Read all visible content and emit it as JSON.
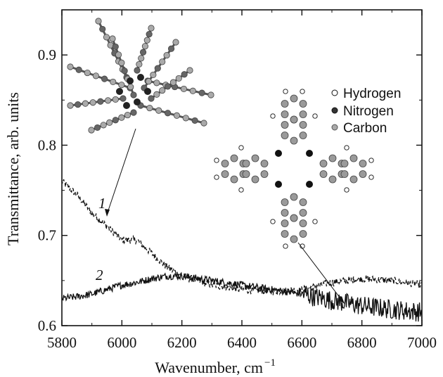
{
  "chart_data": {
    "type": "line",
    "xlabel": "Wavenumber, cm",
    "xlabel_sup": "−1",
    "ylabel": "Transmittance, arb. units",
    "xlim": [
      5800,
      7000
    ],
    "ylim": [
      0.6,
      0.95
    ],
    "xticks": [
      5800,
      6000,
      6200,
      6400,
      6600,
      6800,
      7000
    ],
    "yticks": [
      0.6,
      0.7,
      0.8,
      0.9
    ],
    "ytick_labels": [
      "0.6",
      "0.7",
      "0.8",
      "0.9"
    ],
    "grid": false,
    "series": [
      {
        "name": "1",
        "style": "dashed",
        "x": [
          5800,
          5850,
          5900,
          5950,
          6000,
          6050,
          6100,
          6150,
          6200,
          6300,
          6400,
          6500,
          6600,
          6700,
          6800,
          6900,
          7000
        ],
        "y": [
          0.76,
          0.745,
          0.725,
          0.71,
          0.695,
          0.695,
          0.68,
          0.665,
          0.655,
          0.645,
          0.64,
          0.638,
          0.64,
          0.648,
          0.652,
          0.65,
          0.645
        ]
      },
      {
        "name": "2",
        "style": "solid",
        "x": [
          5800,
          5850,
          5900,
          5950,
          6000,
          6050,
          6100,
          6150,
          6200,
          6300,
          6400,
          6500,
          6600,
          6700,
          6800,
          6900,
          7000
        ],
        "y": [
          0.63,
          0.632,
          0.635,
          0.64,
          0.645,
          0.648,
          0.652,
          0.655,
          0.655,
          0.65,
          0.645,
          0.64,
          0.635,
          0.628,
          0.622,
          0.618,
          0.615
        ]
      }
    ],
    "curve_labels": [
      "1",
      "2"
    ],
    "legend": {
      "placement": "top-right",
      "items": [
        {
          "label": "Hydrogen",
          "color": "#ffffff"
        },
        {
          "label": "Nitrogen",
          "color": "#333333"
        },
        {
          "label": "Carbon",
          "color": "#aaaaaa"
        }
      ]
    }
  }
}
